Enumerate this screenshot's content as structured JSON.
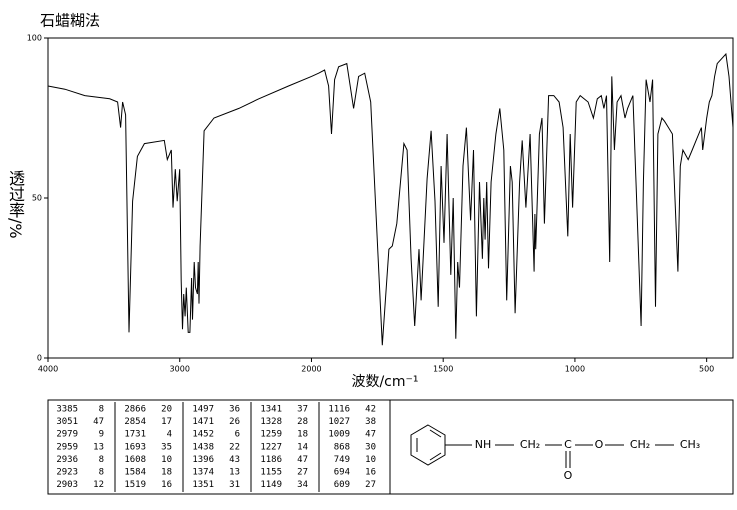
{
  "chart_data": {
    "type": "line",
    "title": "石蜡糊法",
    "x_label": "波数/cm⁻¹",
    "y_label": "透过率/%",
    "xlim": [
      4000,
      400
    ],
    "xticks": [
      4000,
      3000,
      2000,
      1500,
      1000,
      500
    ],
    "ylim": [
      0,
      100
    ],
    "yticks": [
      0,
      50,
      100
    ],
    "color": "#000000",
    "x": [
      4000,
      3872,
      3721,
      3532,
      3472,
      3449,
      3434,
      3411,
      3385,
      3358,
      3321,
      3268,
      3117,
      3094,
      3064,
      3051,
      3034,
      3019,
      3000,
      2989,
      2979,
      2970,
      2959,
      2950,
      2936,
      2923,
      2910,
      2903,
      2890,
      2880,
      2866,
      2860,
      2854,
      2845,
      2815,
      2740,
      2551,
      2400,
      2174,
      2000,
      1973,
      1950,
      1935,
      1924,
      1912,
      1897,
      1866,
      1840,
      1821,
      1798,
      1775,
      1752,
      1731,
      1706,
      1693,
      1676,
      1649,
      1637,
      1622,
      1608,
      1592,
      1584,
      1561,
      1546,
      1531,
      1519,
      1508,
      1497,
      1485,
      1471,
      1462,
      1452,
      1445,
      1438,
      1425,
      1412,
      1396,
      1385,
      1374,
      1362,
      1351,
      1346,
      1341,
      1335,
      1328,
      1318,
      1300,
      1285,
      1270,
      1259,
      1245,
      1238,
      1227,
      1210,
      1200,
      1186,
      1170,
      1155,
      1152,
      1149,
      1135,
      1125,
      1116,
      1100,
      1080,
      1060,
      1045,
      1027,
      1018,
      1009,
      995,
      980,
      950,
      930,
      915,
      900,
      890,
      880,
      868,
      860,
      850,
      840,
      825,
      810,
      800,
      780,
      768,
      749,
      740,
      730,
      715,
      705,
      694,
      685,
      670,
      660,
      645,
      630,
      609,
      600,
      590,
      570,
      555,
      540,
      520,
      515,
      500,
      490,
      480,
      470,
      460,
      427,
      415,
      400
    ],
    "values": [
      85,
      84,
      82,
      81,
      80,
      72,
      80,
      76,
      8,
      49,
      63,
      67,
      68,
      62,
      65,
      47,
      59,
      49,
      59,
      24,
      9,
      20,
      13,
      22,
      8,
      8,
      25,
      12,
      30,
      22,
      20,
      30,
      17,
      35,
      71,
      75,
      78,
      81,
      85,
      88,
      89,
      90,
      85,
      70,
      87,
      91,
      92,
      78,
      88,
      89,
      80,
      40,
      4,
      34,
      35,
      42,
      67,
      65,
      31,
      10,
      34,
      18,
      56,
      71,
      49,
      16,
      60,
      36,
      70,
      26,
      50,
      6,
      30,
      22,
      60,
      72,
      43,
      65,
      13,
      55,
      31,
      50,
      37,
      55,
      28,
      55,
      70,
      78,
      65,
      18,
      60,
      55,
      14,
      55,
      68,
      47,
      70,
      27,
      45,
      34,
      70,
      75,
      42,
      82,
      82,
      80,
      72,
      38,
      70,
      47,
      80,
      82,
      80,
      75,
      81,
      82,
      78,
      82,
      30,
      88,
      65,
      80,
      82,
      75,
      78,
      82,
      55,
      10,
      55,
      87,
      80,
      87,
      16,
      70,
      75,
      74,
      72,
      70,
      27,
      60,
      65,
      62,
      65,
      68,
      72,
      65,
      75,
      80,
      82,
      88,
      92,
      95,
      88,
      72
    ]
  },
  "peak_table": [
    [
      [
        3385,
        8
      ],
      [
        3051,
        47
      ],
      [
        2979,
        9
      ],
      [
        2959,
        13
      ],
      [
        2936,
        8
      ],
      [
        2923,
        8
      ],
      [
        2903,
        12
      ]
    ],
    [
      [
        2866,
        20
      ],
      [
        2854,
        17
      ],
      [
        1731,
        4
      ],
      [
        1693,
        35
      ],
      [
        1608,
        10
      ],
      [
        1584,
        18
      ],
      [
        1519,
        16
      ]
    ],
    [
      [
        1497,
        36
      ],
      [
        1471,
        26
      ],
      [
        1452,
        6
      ],
      [
        1438,
        22
      ],
      [
        1396,
        43
      ],
      [
        1374,
        13
      ],
      [
        1351,
        31
      ]
    ],
    [
      [
        1341,
        37
      ],
      [
        1328,
        28
      ],
      [
        1259,
        18
      ],
      [
        1227,
        14
      ],
      [
        1186,
        47
      ],
      [
        1155,
        27
      ],
      [
        1149,
        34
      ]
    ],
    [
      [
        1116,
        42
      ],
      [
        1027,
        38
      ],
      [
        1009,
        47
      ],
      [
        868,
        30
      ],
      [
        749,
        10
      ],
      [
        694,
        16
      ],
      [
        609,
        27
      ]
    ]
  ],
  "structure": {
    "labels": [
      "NH",
      "CH₂",
      "C",
      "O",
      "O",
      "CH₂",
      "CH₃"
    ]
  }
}
